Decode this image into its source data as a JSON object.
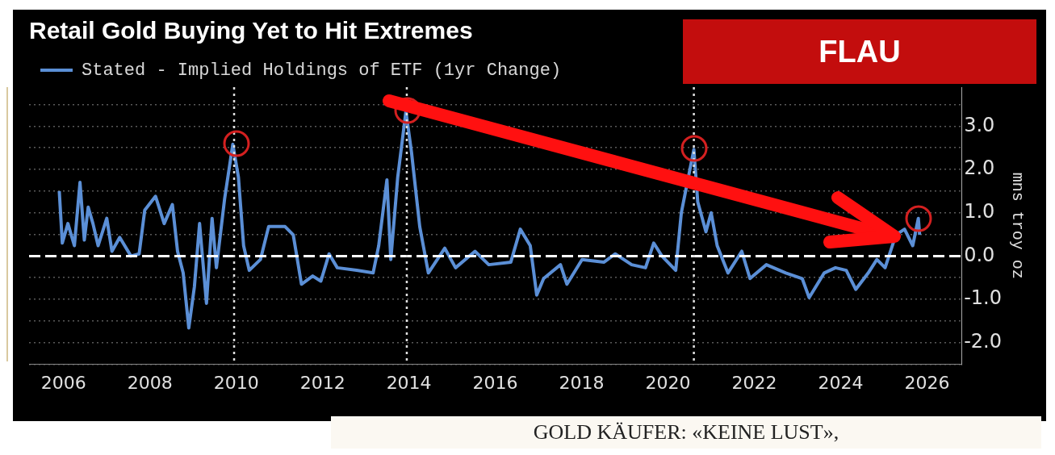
{
  "chart_data": {
    "type": "line",
    "title": "Retail Gold Buying Yet to Hit Extremes",
    "ylabel": "mns troy oz",
    "legend": "top left",
    "grid": "y",
    "marker": "none",
    "line_style": "solid",
    "xlim": [
      2005.2,
      2026.8
    ],
    "xticks": [
      2006,
      2008,
      2010,
      2012,
      2014,
      2016,
      2018,
      2020,
      2022,
      2024,
      2026
    ],
    "ylim": [
      -2.5,
      3.9
    ],
    "yticks": [
      {
        "value": -2.5,
        "label": null
      },
      {
        "value": -2,
        "label": "-2.0"
      },
      {
        "value": -1.5,
        "label": null
      },
      {
        "value": -1,
        "label": "-1.0"
      },
      {
        "value": -0.5,
        "label": null
      },
      {
        "value": 0,
        "label": "0.0"
      },
      {
        "value": 0.5,
        "label": null
      },
      {
        "value": 1,
        "label": "1.0"
      },
      {
        "value": 1.5,
        "label": null
      },
      {
        "value": 2,
        "label": "2.0"
      },
      {
        "value": 2.5,
        "label": null
      },
      {
        "value": 3,
        "label": "3.0"
      },
      {
        "value": 3.5,
        "label": null
      }
    ],
    "ref_lines": [
      {
        "axis": "y",
        "value": 0,
        "label": null,
        "color": "#ffffff",
        "line_style": "dashed"
      },
      {
        "axis": "x",
        "value": 2009.95,
        "label": null,
        "color": "#e0e0e0",
        "line_style": "dotted"
      },
      {
        "axis": "x",
        "value": 2013.95,
        "label": null,
        "color": "#e0e0e0",
        "line_style": "dotted"
      },
      {
        "axis": "x",
        "value": 2020.6,
        "label": null,
        "color": "#e0e0e0",
        "line_style": "dotted"
      }
    ],
    "annotations": [
      "FLAU",
      "GOLD KÄUFER: «KEINE LUST»,"
    ],
    "series": [
      {
        "name": "Stated - Implied Holdings of ETF (1yr Change)",
        "color": "#5b8fd6",
        "x": [
          2005.9,
          2005.97,
          2006.1,
          2006.25,
          2006.38,
          2006.48,
          2006.57,
          2006.68,
          2006.8,
          2007.0,
          2007.12,
          2007.3,
          2007.56,
          2007.75,
          2007.88,
          2008.13,
          2008.33,
          2008.52,
          2008.64,
          2008.77,
          2008.9,
          2009.03,
          2009.15,
          2009.31,
          2009.44,
          2009.54,
          2009.73,
          2009.92,
          2010.05,
          2010.17,
          2010.3,
          2010.56,
          2010.75,
          2011.13,
          2011.32,
          2011.51,
          2011.77,
          2011.96,
          2012.15,
          2012.34,
          2012.79,
          2013.17,
          2013.3,
          2013.49,
          2013.58,
          2013.74,
          2013.93,
          2014.06,
          2014.25,
          2014.45,
          2014.83,
          2015.08,
          2015.53,
          2015.85,
          2016.36,
          2016.58,
          2016.81,
          2016.96,
          2017.12,
          2017.51,
          2017.66,
          2018.01,
          2018.52,
          2018.78,
          2019.16,
          2019.48,
          2019.67,
          2019.86,
          2020.18,
          2020.31,
          2020.6,
          2020.69,
          2020.88,
          2021.0,
          2021.14,
          2021.39,
          2021.71,
          2021.9,
          2022.28,
          2022.73,
          2023.11,
          2023.27,
          2023.62,
          2023.88,
          2024.13,
          2024.35,
          2024.64,
          2024.84,
          2025.03,
          2025.28,
          2025.48,
          2025.67,
          2025.8,
          2025.83
        ],
        "values": [
          1.5,
          0.3,
          0.75,
          0.24,
          1.7,
          0.37,
          1.13,
          0.75,
          0.24,
          0.87,
          0.11,
          0.43,
          0.0,
          0.05,
          1.06,
          1.38,
          0.75,
          1.19,
          0.11,
          -0.39,
          -1.66,
          -0.71,
          0.75,
          -1.09,
          0.87,
          -0.27,
          1.32,
          2.58,
          1.82,
          0.24,
          -0.33,
          -0.08,
          0.68,
          0.68,
          0.49,
          -0.65,
          -0.46,
          -0.58,
          0.05,
          -0.27,
          -0.33,
          -0.39,
          0.24,
          1.76,
          -0.08,
          1.82,
          3.34,
          2.39,
          0.68,
          -0.39,
          0.18,
          -0.27,
          0.11,
          -0.2,
          -0.14,
          0.62,
          0.24,
          -0.9,
          -0.52,
          -0.2,
          -0.65,
          -0.08,
          -0.14,
          0.05,
          -0.2,
          -0.27,
          0.3,
          0.0,
          -0.33,
          1.0,
          2.46,
          1.25,
          0.56,
          1.0,
          0.24,
          -0.39,
          0.11,
          -0.52,
          -0.2,
          -0.39,
          -0.52,
          -0.96,
          -0.39,
          -0.27,
          -0.33,
          -0.77,
          -0.39,
          -0.08,
          -0.27,
          0.49,
          0.62,
          0.24,
          0.87,
          0.49
        ]
      }
    ]
  }
}
